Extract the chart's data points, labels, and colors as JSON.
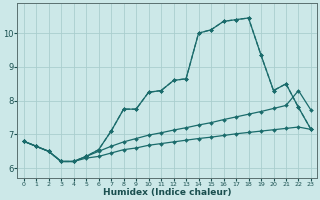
{
  "xlabel": "Humidex (Indice chaleur)",
  "bg_color": "#cce8e8",
  "grid_color": "#aacece",
  "line_color": "#1a6b6b",
  "xlim": [
    -0.5,
    23.5
  ],
  "ylim": [
    5.7,
    10.9
  ],
  "xticks": [
    0,
    1,
    2,
    3,
    4,
    5,
    6,
    7,
    8,
    9,
    10,
    11,
    12,
    13,
    14,
    15,
    16,
    17,
    18,
    19,
    20,
    21,
    22,
    23
  ],
  "yticks": [
    6,
    7,
    8,
    9,
    10
  ],
  "series": [
    {
      "x": [
        0,
        1,
        2,
        3,
        4,
        5,
        6,
        7,
        8,
        9,
        10,
        11,
        12,
        13,
        14,
        15,
        16,
        17,
        18,
        19,
        20,
        21,
        22,
        23
      ],
      "y": [
        6.8,
        6.65,
        6.5,
        6.2,
        6.2,
        6.3,
        6.35,
        6.45,
        6.55,
        6.6,
        6.68,
        6.73,
        6.78,
        6.83,
        6.88,
        6.92,
        6.97,
        7.02,
        7.06,
        7.1,
        7.14,
        7.18,
        7.22,
        7.15
      ],
      "ls": "-",
      "lw": 0.9
    },
    {
      "x": [
        0,
        1,
        2,
        3,
        4,
        5,
        6,
        7,
        8,
        9,
        10,
        11,
        12,
        13,
        14,
        15,
        16,
        17,
        18,
        19,
        20,
        21,
        22,
        23
      ],
      "y": [
        6.8,
        6.65,
        6.5,
        6.2,
        6.2,
        6.35,
        6.5,
        6.65,
        6.78,
        6.88,
        6.98,
        7.05,
        7.13,
        7.2,
        7.28,
        7.35,
        7.44,
        7.52,
        7.6,
        7.68,
        7.77,
        7.86,
        8.3,
        7.72
      ],
      "ls": "-",
      "lw": 0.9
    },
    {
      "x": [
        0,
        1,
        2,
        3,
        4,
        5,
        6,
        7,
        8,
        9,
        10,
        11,
        12,
        13,
        14,
        15,
        16,
        17,
        18,
        19,
        20,
        21,
        22,
        23
      ],
      "y": [
        6.8,
        6.65,
        6.5,
        6.2,
        6.2,
        6.35,
        6.55,
        7.1,
        7.75,
        7.75,
        8.25,
        8.3,
        8.6,
        8.65,
        10.0,
        10.1,
        10.35,
        10.4,
        10.45,
        9.35,
        8.3,
        8.5,
        7.8,
        7.15
      ],
      "ls": "--",
      "lw": 0.9
    },
    {
      "x": [
        0,
        1,
        2,
        3,
        4,
        5,
        6,
        7,
        8,
        9,
        10,
        11,
        12,
        13,
        14,
        15,
        16,
        17,
        18,
        19,
        20,
        21,
        22,
        23
      ],
      "y": [
        6.8,
        6.65,
        6.5,
        6.2,
        6.2,
        6.35,
        6.55,
        7.1,
        7.75,
        7.75,
        8.25,
        8.3,
        8.6,
        8.65,
        10.0,
        10.1,
        10.35,
        10.4,
        10.45,
        9.35,
        8.3,
        8.5,
        7.8,
        7.15
      ],
      "ls": "-",
      "lw": 0.9
    }
  ]
}
